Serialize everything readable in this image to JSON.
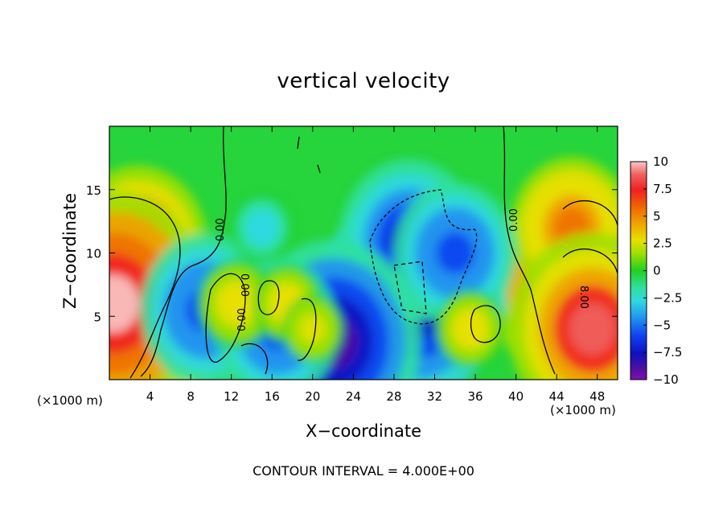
{
  "chart_data": {
    "type": "heatmap",
    "title": "vertical velocity",
    "xlabel": "X−coordinate",
    "ylabel": "Z−coordinate",
    "x_unit": "(×1000 m)",
    "z_unit": "(×1000 m)",
    "footnote": "CONTOUR INTERVAL = 4.000E+00",
    "xlim": [
      0,
      50
    ],
    "ylim": [
      0,
      20
    ],
    "x_ticks": [
      4,
      8,
      12,
      16,
      20,
      24,
      28,
      32,
      36,
      40,
      44,
      48
    ],
    "x_tick_labels": [
      "4",
      "8",
      "12",
      "16",
      "20",
      "24",
      "28",
      "32",
      "36",
      "40",
      "44",
      "48"
    ],
    "y_ticks": [
      5,
      10,
      15
    ],
    "y_tick_labels": [
      "5",
      "10",
      "15"
    ],
    "colorbar": {
      "min": -10,
      "max": 10,
      "ticks": [
        10,
        7.5,
        5,
        2.5,
        0,
        -2.5,
        -5,
        -7.5,
        -10
      ],
      "tick_labels": [
        "10",
        "7.5",
        "5",
        "2.5",
        "0",
        "−2.5",
        "−5",
        "−7.5",
        "−10"
      ]
    },
    "contour_labels": [
      "0.00",
      "0.00",
      "0.00",
      "0.00",
      "8.00"
    ],
    "features": [
      {
        "x": 2.8,
        "z": 10.5,
        "w": 7.0
      },
      {
        "x": 2.2,
        "z": 2.8,
        "w": 8.5
      },
      {
        "x": 0.4,
        "z": 6.0,
        "w": 10
      },
      {
        "x": 46.5,
        "z": 7.5,
        "w": 9.5
      },
      {
        "x": 45.5,
        "z": 12.0,
        "w": 6.0
      },
      {
        "x": 47.5,
        "z": 4.0,
        "w": 8.5
      },
      {
        "x": 30.0,
        "z": 7.0,
        "w": -9.5
      },
      {
        "x": 29.5,
        "z": 11.0,
        "w": -7.0
      },
      {
        "x": 34.0,
        "z": 10.0,
        "w": -6.0
      },
      {
        "x": 22.0,
        "z": 3.0,
        "w": -9.0
      },
      {
        "x": 9.5,
        "z": 5.5,
        "w": -6.5
      },
      {
        "x": 16.5,
        "z": 4.0,
        "w": -6.0
      },
      {
        "x": 12.5,
        "z": 6.0,
        "w": 3.5
      },
      {
        "x": 17.5,
        "z": 6.0,
        "w": 3.0
      },
      {
        "x": 20.0,
        "z": 4.0,
        "w": 2.5
      },
      {
        "x": 35.5,
        "z": 4.0,
        "w": 3.0
      },
      {
        "x": 15.0,
        "z": 12.0,
        "w": -2.5
      }
    ]
  }
}
